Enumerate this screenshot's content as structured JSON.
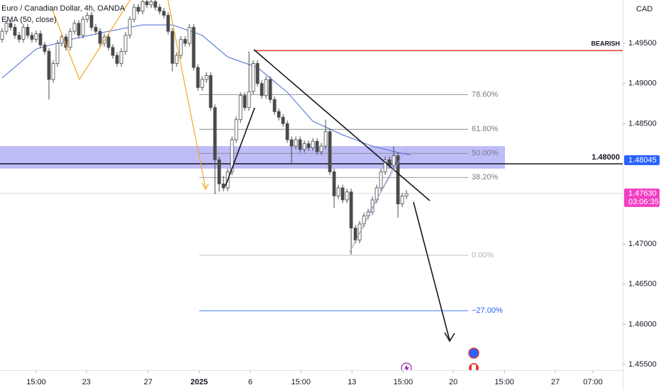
{
  "chart_data": {
    "type": "candlestick",
    "title": "Euro / Canadian Dollar, 4h, OANDA",
    "currency": "CAD",
    "up_color": "#ffffff",
    "down_color": "#4a4a4a",
    "wick_color": "#4a4a4a",
    "ylim": [
      1.4543,
      1.5004
    ],
    "yticks": [
      {
        "value": 1.495,
        "label": "1.49500"
      },
      {
        "value": 1.49,
        "label": "1.49000"
      },
      {
        "value": 1.485,
        "label": "1.48500"
      },
      {
        "value": 1.47,
        "label": "1.47000"
      },
      {
        "value": 1.465,
        "label": "1.46500"
      },
      {
        "value": 1.46,
        "label": "1.46000"
      },
      {
        "value": 1.455,
        "label": "1.45500"
      }
    ],
    "xlim": [
      -0.5,
      145.8
    ],
    "xticks": [
      {
        "value": 8,
        "label": "15:00"
      },
      {
        "value": 19.8,
        "label": "23"
      },
      {
        "value": 34.3,
        "label": "27"
      },
      {
        "value": 46.3,
        "label": "2025"
      },
      {
        "value": 58.3,
        "label": "6"
      },
      {
        "value": 70.2,
        "label": "15:00"
      },
      {
        "value": 82.2,
        "label": "13"
      },
      {
        "value": 94.2,
        "label": "15:00"
      },
      {
        "value": 106,
        "label": "20"
      },
      {
        "value": 118,
        "label": "15:00"
      },
      {
        "value": 130,
        "label": "27"
      },
      {
        "value": 138.8,
        "label": "07:00"
      }
    ],
    "candles": [
      [
        1.4955,
        1.4969,
        1.4951,
        1.4965
      ],
      [
        1.4965,
        1.4979,
        1.4961,
        1.4975
      ],
      [
        1.4975,
        1.4979,
        1.4966,
        1.497
      ],
      [
        1.497,
        1.4974,
        1.4956,
        1.496
      ],
      [
        1.496,
        1.4964,
        1.4951,
        1.4955
      ],
      [
        1.4955,
        1.4974,
        1.4951,
        1.497
      ],
      [
        1.497,
        1.4974,
        1.4956,
        1.496
      ],
      [
        1.496,
        1.4964,
        1.4951,
        1.4955
      ],
      [
        1.4955,
        1.4966,
        1.4951,
        1.4962
      ],
      [
        1.4962,
        1.4966,
        1.4944,
        1.4948
      ],
      [
        1.4948,
        1.4952,
        1.4936,
        1.494
      ],
      [
        1.494,
        1.4944,
        1.488,
        1.4905
      ],
      [
        1.4905,
        1.4929,
        1.4901,
        1.4925
      ],
      [
        1.4925,
        1.4954,
        1.4921,
        1.495
      ],
      [
        1.495,
        1.4962,
        1.4946,
        1.4958
      ],
      [
        1.4958,
        1.4962,
        1.4941,
        1.4945
      ],
      [
        1.4945,
        1.4969,
        1.4941,
        1.4965
      ],
      [
        1.4965,
        1.4979,
        1.4961,
        1.4975
      ],
      [
        1.4975,
        1.4979,
        1.4956,
        1.496
      ],
      [
        1.496,
        1.4984,
        1.4956,
        1.498
      ],
      [
        1.498,
        1.4989,
        1.4976,
        1.4985
      ],
      [
        1.4985,
        1.4989,
        1.4966,
        1.497
      ],
      [
        1.497,
        1.4974,
        1.4961,
        1.4965
      ],
      [
        1.4965,
        1.4969,
        1.4946,
        1.495
      ],
      [
        1.495,
        1.4962,
        1.4946,
        1.4958
      ],
      [
        1.4958,
        1.4962,
        1.4941,
        1.4945
      ],
      [
        1.4945,
        1.4949,
        1.4931,
        1.4935
      ],
      [
        1.4935,
        1.4939,
        1.4921,
        1.4925
      ],
      [
        1.4925,
        1.4944,
        1.4921,
        1.494
      ],
      [
        1.494,
        1.4964,
        1.4936,
        1.496
      ],
      [
        1.496,
        1.4984,
        1.4956,
        1.498
      ],
      [
        1.498,
        1.4999,
        1.4976,
        1.4995
      ],
      [
        1.4995,
        1.4999,
        1.4986,
        1.499
      ],
      [
        1.499,
        1.5006,
        1.4986,
        1.5002
      ],
      [
        1.5002,
        1.5006,
        1.4994,
        1.4998
      ],
      [
        1.4998,
        1.5006,
        1.4994,
        1.5002
      ],
      [
        1.5002,
        1.5006,
        1.4991,
        1.4995
      ],
      [
        1.4995,
        1.4999,
        1.4986,
        1.499
      ],
      [
        1.499,
        1.4994,
        1.4981,
        1.4985
      ],
      [
        1.4985,
        1.4989,
        1.4961,
        1.4965
      ],
      [
        1.4965,
        1.4969,
        1.4915,
        1.4925
      ],
      [
        1.4925,
        1.4939,
        1.4921,
        1.4935
      ],
      [
        1.4935,
        1.4959,
        1.4931,
        1.4955
      ],
      [
        1.4955,
        1.4959,
        1.4946,
        1.495
      ],
      [
        1.495,
        1.4974,
        1.4946,
        1.497
      ],
      [
        1.497,
        1.4974,
        1.4916,
        1.492
      ],
      [
        1.492,
        1.4924,
        1.4891,
        1.4895
      ],
      [
        1.4895,
        1.4909,
        1.4891,
        1.4905
      ],
      [
        1.4905,
        1.4914,
        1.4901,
        1.491
      ],
      [
        1.491,
        1.4914,
        1.4866,
        1.487
      ],
      [
        1.487,
        1.4874,
        1.4762,
        1.4805
      ],
      [
        1.4805,
        1.4809,
        1.4765,
        1.4775
      ],
      [
        1.4775,
        1.4785,
        1.4766,
        1.477
      ],
      [
        1.477,
        1.4794,
        1.4766,
        1.479
      ],
      [
        1.479,
        1.4834,
        1.4786,
        1.483
      ],
      [
        1.483,
        1.4859,
        1.4826,
        1.4855
      ],
      [
        1.4855,
        1.4889,
        1.4851,
        1.4885
      ],
      [
        1.4885,
        1.4889,
        1.4866,
        1.487
      ],
      [
        1.487,
        1.494,
        1.4866,
        1.489
      ],
      [
        1.489,
        1.4929,
        1.4886,
        1.4925
      ],
      [
        1.4925,
        1.4929,
        1.4896,
        1.49
      ],
      [
        1.49,
        1.4904,
        1.4881,
        1.4885
      ],
      [
        1.4885,
        1.4909,
        1.4881,
        1.4905
      ],
      [
        1.4905,
        1.4909,
        1.4876,
        1.488
      ],
      [
        1.488,
        1.4884,
        1.4861,
        1.4865
      ],
      [
        1.4865,
        1.4869,
        1.4854,
        1.4858
      ],
      [
        1.4858,
        1.4862,
        1.4846,
        1.485
      ],
      [
        1.485,
        1.4854,
        1.4826,
        1.483
      ],
      [
        1.483,
        1.4834,
        1.48,
        1.4822
      ],
      [
        1.4822,
        1.4834,
        1.4818,
        1.483
      ],
      [
        1.483,
        1.4834,
        1.4814,
        1.4818
      ],
      [
        1.4818,
        1.4829,
        1.4814,
        1.4825
      ],
      [
        1.4825,
        1.4829,
        1.4816,
        1.482
      ],
      [
        1.482,
        1.4832,
        1.4816,
        1.4828
      ],
      [
        1.4828,
        1.4832,
        1.4811,
        1.4815
      ],
      [
        1.4815,
        1.4826,
        1.4811,
        1.4822
      ],
      [
        1.4822,
        1.4855,
        1.4818,
        1.484
      ],
      [
        1.484,
        1.4844,
        1.4786,
        1.479
      ],
      [
        1.479,
        1.4794,
        1.4745,
        1.476
      ],
      [
        1.476,
        1.4774,
        1.4756,
        1.477
      ],
      [
        1.477,
        1.4774,
        1.4751,
        1.4755
      ],
      [
        1.4755,
        1.4769,
        1.4751,
        1.4765
      ],
      [
        1.4765,
        1.4769,
        1.4687,
        1.472
      ],
      [
        1.472,
        1.4724,
        1.4701,
        1.4705
      ],
      [
        1.4705,
        1.4729,
        1.4701,
        1.4725
      ],
      [
        1.4725,
        1.4739,
        1.4721,
        1.4735
      ],
      [
        1.4735,
        1.4744,
        1.4731,
        1.474
      ],
      [
        1.474,
        1.4759,
        1.4736,
        1.4755
      ],
      [
        1.4755,
        1.4774,
        1.4751,
        1.477
      ],
      [
        1.477,
        1.4794,
        1.4766,
        1.479
      ],
      [
        1.479,
        1.4809,
        1.4786,
        1.4805
      ],
      [
        1.4805,
        1.4809,
        1.4794,
        1.4798
      ],
      [
        1.4798,
        1.4822,
        1.4794,
        1.481
      ],
      [
        1.481,
        1.4814,
        1.4733,
        1.475
      ],
      [
        1.475,
        1.4764,
        1.4746,
        1.476
      ],
      [
        1.476,
        1.4767,
        1.4756,
        1.4763
      ]
    ],
    "ema": {
      "name": "EMA (50, close)",
      "color": "#4a6bd6",
      "x": [
        0,
        8,
        17,
        25,
        33,
        40,
        47,
        53,
        60,
        67,
        73,
        80,
        87,
        93,
        96
      ],
      "values": [
        1.4907,
        1.4943,
        1.4956,
        1.4965,
        1.4973,
        1.4973,
        1.496,
        1.4933,
        1.492,
        1.4889,
        1.4853,
        1.4836,
        1.4822,
        1.4814,
        1.4811
      ]
    },
    "zone": {
      "low": 1.4794,
      "high": 1.4822,
      "color": "#b3b1f6"
    },
    "levels": [
      {
        "label": "78.60%",
        "value": 1.4886,
        "color": "#787b86"
      },
      {
        "label": "61.80%",
        "value": 1.4843,
        "color": "#787b86"
      },
      {
        "label": "50.00%",
        "value": 1.4813,
        "color": "#787b86"
      },
      {
        "label": "38.20%",
        "value": 1.4783,
        "color": "#787b86"
      },
      {
        "label": "0.00%",
        "value": 1.4686,
        "color": "#b2b5be"
      },
      {
        "label": "−27.00%",
        "value": 1.4617,
        "color": "#2962ff"
      }
    ],
    "bearish": {
      "label": "BEARISH",
      "value": 1.4941,
      "color": "#e53935"
    },
    "line_level": {
      "value": 1.48,
      "label": "1.48000"
    },
    "line_price": {
      "value": 1.48045,
      "label": "1.48045",
      "color": "#2962ff"
    },
    "last_price": {
      "value": 1.4763,
      "label": "1.47630",
      "color": "#f23fc2"
    },
    "countdown": "03:06:35"
  }
}
